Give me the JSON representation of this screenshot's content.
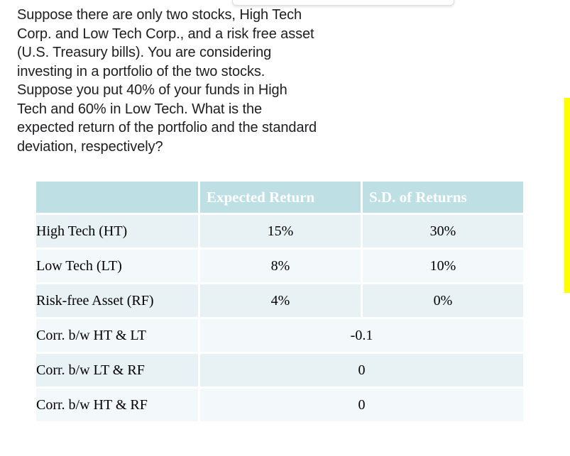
{
  "question": {
    "text": "Suppose there are only two stocks, High Tech\nCorp. and Low Tech Corp., and a risk free asset\n(U.S. Treasury bills). You are considering\ninvesting in a portfolio of the two stocks.\nSuppose you put 40% of your funds in High\nTech and 60% in Low Tech. What is the\nexpected return of the portfolio and the standard\ndeviation, respectively?"
  },
  "table": {
    "headers": {
      "col1": "",
      "col2": "Expected Return",
      "col3": "S.D. of Returns"
    },
    "rows": [
      {
        "label": "High Tech (HT)",
        "expected": "15%",
        "sd": "30%"
      },
      {
        "label": "Low Tech (LT)",
        "expected": "8%",
        "sd": "10%"
      },
      {
        "label": "Risk-free Asset (RF)",
        "expected": "4%",
        "sd": "0%"
      },
      {
        "label": "Corr. b/w HT & LT",
        "value": "-0.1"
      },
      {
        "label": "Corr. b/w LT & RF",
        "value": "0"
      },
      {
        "label": "Corr. b/w HT & RF",
        "value": "0"
      }
    ]
  },
  "colors": {
    "header_bg": "#bedfe3",
    "row_alt_bg": "#e8f1f4",
    "row_bg": "#f3f8fa",
    "highlight_bar": "#ffff00",
    "header_text": "#ffffff"
  }
}
